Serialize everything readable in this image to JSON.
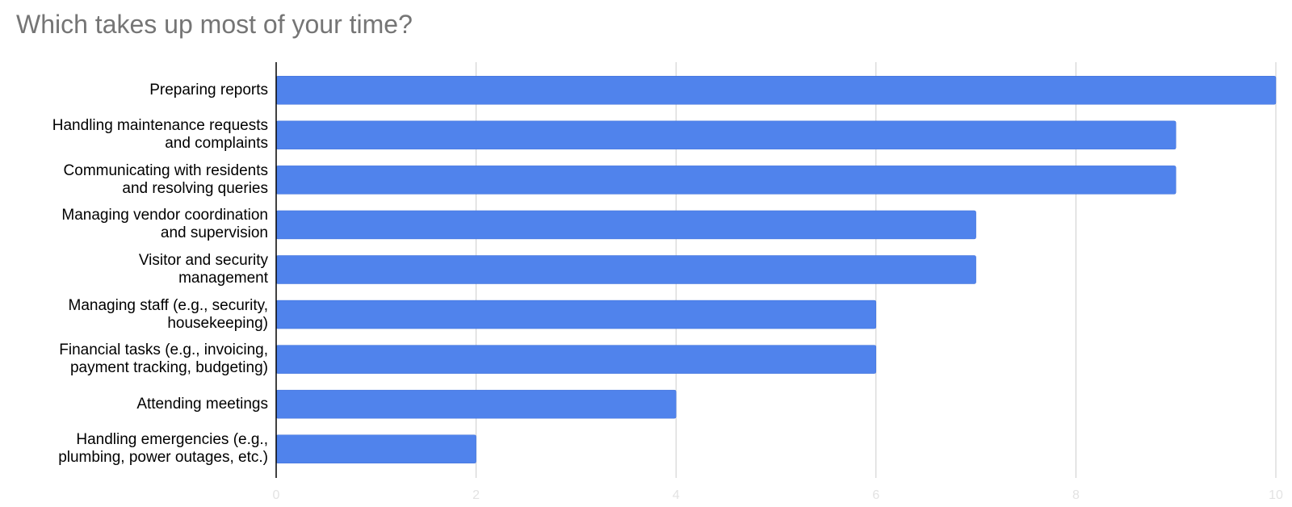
{
  "chart_data": {
    "type": "bar",
    "orientation": "horizontal",
    "title": "Which takes up most of your time?",
    "categories": [
      "Preparing reports",
      "Handling maintenance requests\nand complaints",
      "Communicating with residents\nand resolving queries",
      "Managing vendor coordination\nand supervision",
      "Visitor and security\nmanagement",
      "Managing staff (e.g., security,\nhousekeeping)",
      "Financial tasks (e.g., invoicing,\npayment tracking, budgeting)",
      "Attending meetings",
      "Handling emergencies (e.g.,\nplumbing, power outages, etc.)"
    ],
    "values": [
      10,
      9,
      9,
      7,
      7,
      6,
      6,
      4,
      2
    ],
    "color": "#5083ec",
    "xlim": [
      0,
      10
    ],
    "xticks": [
      0,
      2,
      4,
      6,
      8,
      10
    ],
    "grid": true
  }
}
